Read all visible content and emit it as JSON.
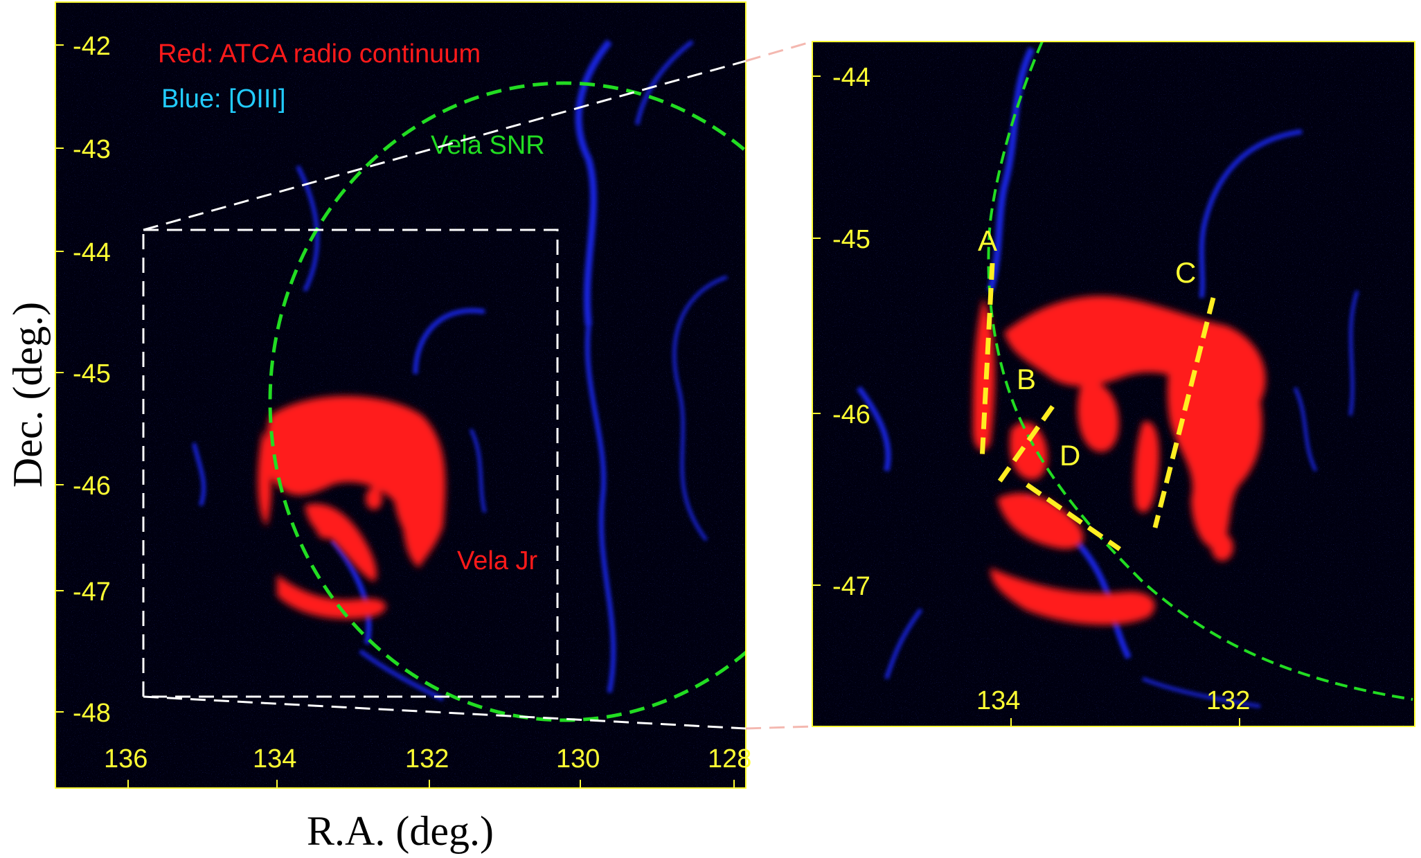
{
  "left_panel": {
    "ra_ticks": [
      "136",
      "134",
      "132",
      "130",
      "128"
    ],
    "dec_ticks": [
      "-42",
      "-43",
      "-44",
      "-45",
      "-46",
      "-47",
      "-48"
    ],
    "x_axis_title": "R.A. (deg.)",
    "y_axis_title": "Dec. (deg.)",
    "legend_red": "Red: ATCA radio continuum",
    "legend_blue": "Blue: [OIII]",
    "label_vela_snr": "Vela SNR",
    "label_vela_jr": "Vela Jr"
  },
  "right_panel": {
    "ra_ticks": [
      "134",
      "132"
    ],
    "dec_ticks": [
      "-44",
      "-45",
      "-46",
      "-47"
    ],
    "region_labels": [
      "A",
      "B",
      "C",
      "D"
    ]
  },
  "colors": {
    "background_sky": "#000000",
    "oiii_emission": "#1a2cff",
    "radio_continuum": "#ff1a1a",
    "snr_outline": "#22dd22",
    "axis_tick": "#ffff33",
    "cut_lines": "#ffee22",
    "legend_blue_text": "#22ccff"
  }
}
